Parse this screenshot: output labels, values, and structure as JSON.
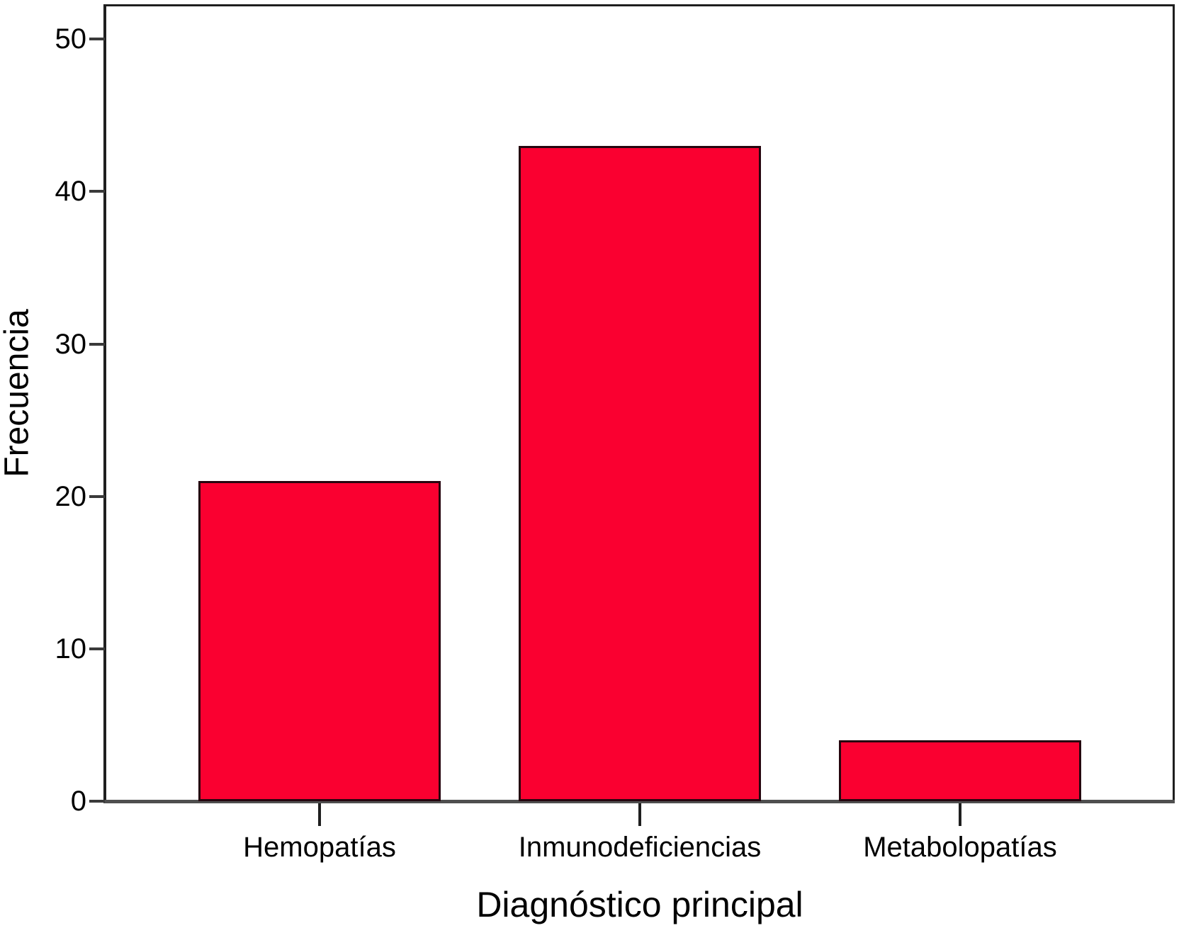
{
  "chart_data": {
    "type": "bar",
    "title": "",
    "categories": [
      "Hemopatías",
      "Inmunodeficiencias",
      "Metabolopatías"
    ],
    "values": [
      21,
      43,
      4
    ],
    "xlabel": "Diagnóstico principal",
    "ylabel": "Frecuencia",
    "yticks": [
      0,
      10,
      20,
      30,
      40,
      50
    ],
    "ylim": [
      0,
      52.2
    ],
    "grid": false,
    "legend": "none",
    "colors": {
      "bar_fill": "#fa0030",
      "bar_border": "#26060f",
      "x_axis_line": "#4f4f4f",
      "frame_line": "#1f1f1f",
      "text": "#000000",
      "background": "#ffffff"
    }
  }
}
